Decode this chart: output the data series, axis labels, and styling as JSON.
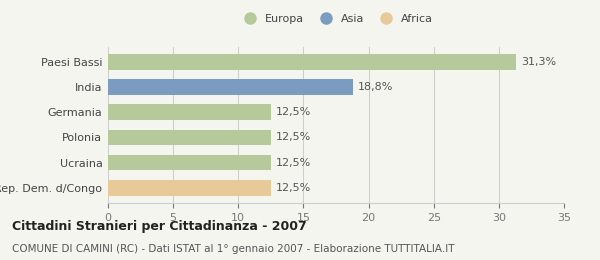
{
  "categories": [
    "Paesi Bassi",
    "India",
    "Germania",
    "Polonia",
    "Ucraina",
    "Rep. Dem. d/Congo"
  ],
  "values": [
    31.3,
    18.8,
    12.5,
    12.5,
    12.5,
    12.5
  ],
  "labels": [
    "31,3%",
    "18,8%",
    "12,5%",
    "12,5%",
    "12,5%",
    "12,5%"
  ],
  "colors": [
    "#b5c99a",
    "#7b9bbf",
    "#b5c99a",
    "#b5c99a",
    "#b5c99a",
    "#e8c99a"
  ],
  "legend_items": [
    {
      "label": "Europa",
      "color": "#b5c99a"
    },
    {
      "label": "Asia",
      "color": "#7b9bbf"
    },
    {
      "label": "Africa",
      "color": "#e8c99a"
    }
  ],
  "xlim": [
    0,
    35
  ],
  "xticks": [
    0,
    5,
    10,
    15,
    20,
    25,
    30,
    35
  ],
  "title_bold": "Cittadini Stranieri per Cittadinanza - 2007",
  "subtitle": "COMUNE DI CAMINI (RC) - Dati ISTAT al 1° gennaio 2007 - Elaborazione TUTTITALIA.IT",
  "background_color": "#f5f5f0",
  "bar_height": 0.62,
  "label_fontsize": 8,
  "tick_fontsize": 8,
  "title_fontsize": 9,
  "subtitle_fontsize": 7.5
}
